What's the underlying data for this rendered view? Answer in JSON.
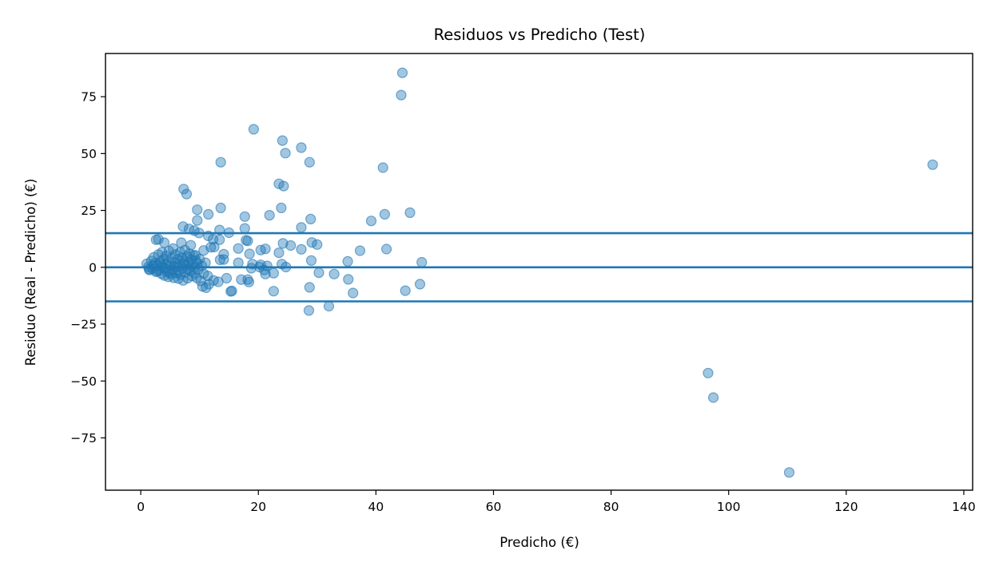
{
  "chart_data": {
    "type": "scatter",
    "title": "Residuos vs Predicho (Test)",
    "xlabel": "Predicho (€)",
    "ylabel": "Residuo (Real - Predicho) (€)",
    "xlim": [
      -6,
      141.5
    ],
    "ylim": [
      -98,
      94
    ],
    "xticks": [
      0,
      20,
      40,
      60,
      80,
      100,
      120,
      140
    ],
    "yticks": [
      -75,
      -50,
      -25,
      0,
      25,
      50,
      75
    ],
    "grid": false,
    "hlines": [
      15,
      0,
      -15
    ],
    "colors": {
      "points": "#1f77b4",
      "lines": "#1f77b4"
    },
    "points": [
      [
        44.5,
        85.5
      ],
      [
        44.3,
        75.7
      ],
      [
        19.2,
        60.7
      ],
      [
        24.1,
        55.7
      ],
      [
        27.3,
        52.6
      ],
      [
        24.6,
        50.2
      ],
      [
        13.6,
        46.2
      ],
      [
        28.7,
        46.2
      ],
      [
        41.2,
        43.8
      ],
      [
        134.7,
        45.1
      ],
      [
        7.3,
        34.4
      ],
      [
        23.5,
        36.7
      ],
      [
        24.3,
        35.7
      ],
      [
        7.8,
        32.2
      ],
      [
        23.9,
        26.1
      ],
      [
        13.6,
        26.1
      ],
      [
        9.6,
        25.3
      ],
      [
        11.5,
        23.3
      ],
      [
        21.9,
        22.9
      ],
      [
        45.8,
        24.0
      ],
      [
        41.5,
        23.3
      ],
      [
        39.2,
        20.4
      ],
      [
        28.9,
        21.2
      ],
      [
        9.6,
        20.6
      ],
      [
        17.7,
        22.3
      ],
      [
        7.2,
        17.9
      ],
      [
        8.2,
        16.9
      ],
      [
        9.1,
        16.1
      ],
      [
        13.4,
        16.4
      ],
      [
        17.7,
        17.1
      ],
      [
        27.3,
        17.5
      ],
      [
        15.0,
        15.2
      ],
      [
        9.9,
        15.1
      ],
      [
        11.5,
        13.8
      ],
      [
        12.3,
        12.3
      ],
      [
        13.4,
        12.1
      ],
      [
        17.9,
        11.9
      ],
      [
        18.2,
        11.6
      ],
      [
        24.2,
        10.5
      ],
      [
        2.6,
        12.1
      ],
      [
        3.0,
        12.3
      ],
      [
        6.9,
        10.8
      ],
      [
        8.5,
        9.7
      ],
      [
        11.9,
        8.8
      ],
      [
        10.7,
        7.4
      ],
      [
        12.5,
        8.9
      ],
      [
        14.1,
        5.8
      ],
      [
        16.6,
        8.3
      ],
      [
        21.2,
        8.1
      ],
      [
        20.4,
        7.6
      ],
      [
        25.5,
        9.6
      ],
      [
        27.3,
        7.9
      ],
      [
        29.1,
        10.9
      ],
      [
        30.0,
        10.0
      ],
      [
        37.3,
        7.3
      ],
      [
        41.8,
        8.0
      ],
      [
        23.5,
        6.4
      ],
      [
        4.0,
        10.8
      ],
      [
        9.3,
        5.3
      ],
      [
        13.5,
        3.3
      ],
      [
        14.1,
        3.4
      ],
      [
        18.5,
        5.9
      ],
      [
        20.4,
        1.1
      ],
      [
        21.5,
        0.6
      ],
      [
        24.0,
        1.4
      ],
      [
        24.7,
        0.1
      ],
      [
        29.0,
        3.0
      ],
      [
        35.2,
        2.6
      ],
      [
        47.8,
        2.2
      ],
      [
        16.6,
        2.0
      ],
      [
        19.0,
        1.4
      ],
      [
        20.2,
        0.1
      ],
      [
        18.8,
        -0.4
      ],
      [
        21.0,
        -1.2
      ],
      [
        22.6,
        -2.6
      ],
      [
        21.2,
        -3.0
      ],
      [
        17.1,
        -5.4
      ],
      [
        18.2,
        -5.4
      ],
      [
        18.4,
        -6.5
      ],
      [
        22.6,
        -10.5
      ],
      [
        15.3,
        -10.6
      ],
      [
        15.5,
        -10.4
      ],
      [
        13.2,
        -6.4
      ],
      [
        14.6,
        -4.8
      ],
      [
        11.6,
        -7.4
      ],
      [
        12.4,
        -5.8
      ],
      [
        11.1,
        -9.0
      ],
      [
        10.5,
        -8.4
      ],
      [
        30.3,
        -2.4
      ],
      [
        32.9,
        -3.0
      ],
      [
        35.3,
        -5.3
      ],
      [
        36.1,
        -11.3
      ],
      [
        28.7,
        -8.8
      ],
      [
        28.6,
        -19.0
      ],
      [
        32.0,
        -17.1
      ],
      [
        45.0,
        -10.3
      ],
      [
        47.5,
        -7.4
      ],
      [
        96.5,
        -46.5
      ],
      [
        97.4,
        -57.3
      ],
      [
        110.3,
        -90.2
      ],
      [
        1.0,
        1.5
      ],
      [
        1.3,
        0.2
      ],
      [
        1.5,
        -1.2
      ],
      [
        1.8,
        2.8
      ],
      [
        2.0,
        -0.6
      ],
      [
        2.2,
        4.4
      ],
      [
        2.4,
        1.8
      ],
      [
        2.6,
        -2.0
      ],
      [
        2.8,
        0.8
      ],
      [
        3.0,
        5.6
      ],
      [
        3.1,
        -1.4
      ],
      [
        3.3,
        2.4
      ],
      [
        3.5,
        -2.8
      ],
      [
        3.6,
        6.6
      ],
      [
        3.7,
        0.2
      ],
      [
        3.9,
        3.6
      ],
      [
        4.0,
        -3.6
      ],
      [
        4.2,
        1.4
      ],
      [
        4.3,
        5.0
      ],
      [
        4.4,
        -1.8
      ],
      [
        4.6,
        2.6
      ],
      [
        4.7,
        -4.2
      ],
      [
        4.8,
        7.2
      ],
      [
        5.0,
        0.6
      ],
      [
        5.1,
        -3.0
      ],
      [
        5.2,
        4.0
      ],
      [
        5.4,
        -1.0
      ],
      [
        5.5,
        8.2
      ],
      [
        5.6,
        -4.6
      ],
      [
        5.8,
        2.2
      ],
      [
        5.9,
        5.6
      ],
      [
        6.0,
        -2.6
      ],
      [
        6.2,
        0.2
      ],
      [
        6.3,
        3.6
      ],
      [
        6.4,
        -5.0
      ],
      [
        6.6,
        1.4
      ],
      [
        6.7,
        6.6
      ],
      [
        6.8,
        -3.2
      ],
      [
        7.0,
        4.2
      ],
      [
        7.1,
        -0.6
      ],
      [
        7.2,
        -5.8
      ],
      [
        7.4,
        2.6
      ],
      [
        7.5,
        7.6
      ],
      [
        7.6,
        -2.2
      ],
      [
        7.8,
        0.8
      ],
      [
        7.9,
        4.8
      ],
      [
        8.0,
        -4.8
      ],
      [
        8.2,
        2.0
      ],
      [
        8.3,
        6.0
      ],
      [
        8.4,
        -1.4
      ],
      [
        8.6,
        3.4
      ],
      [
        8.7,
        -3.8
      ],
      [
        8.8,
        1.0
      ],
      [
        9.0,
        5.2
      ],
      [
        9.1,
        -2.6
      ],
      [
        9.2,
        0.0
      ],
      [
        9.4,
        2.8
      ],
      [
        9.5,
        -4.6
      ],
      [
        9.6,
        1.6
      ],
      [
        9.8,
        -1.0
      ],
      [
        10.0,
        3.6
      ],
      [
        10.2,
        -6.0
      ],
      [
        10.4,
        0.6
      ],
      [
        10.7,
        -2.8
      ],
      [
        11.0,
        2.0
      ],
      [
        11.4,
        -3.8
      ],
      [
        1.4,
        -0.8
      ],
      [
        2.1,
        0.8
      ],
      [
        2.7,
        -1.6
      ],
      [
        3.4,
        1.2
      ],
      [
        4.1,
        -0.4
      ],
      [
        4.9,
        -2.2
      ],
      [
        5.7,
        0.4
      ],
      [
        6.5,
        -1.8
      ],
      [
        7.3,
        1.8
      ],
      [
        8.1,
        -0.8
      ]
    ]
  }
}
